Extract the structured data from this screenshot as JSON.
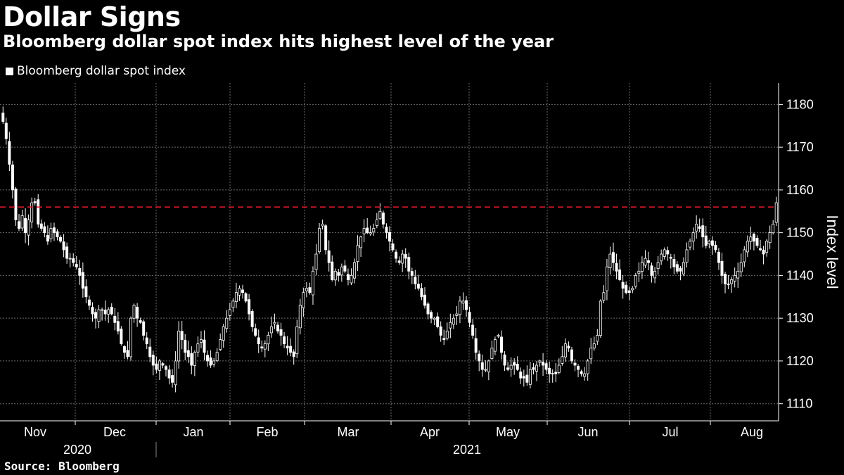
{
  "title": "Dollar Signs",
  "subtitle": "Bloomberg dollar spot index hits highest level of the year",
  "source": "Source: Bloomberg",
  "chart_data": {
    "type": "candlestick",
    "legend": [
      "Bloomberg dollar spot index"
    ],
    "legend_placement": "top-left",
    "ylabel": "Index level",
    "ylim": [
      1106,
      1185
    ],
    "yticks": [
      1110,
      1120,
      1130,
      1140,
      1150,
      1160,
      1170,
      1180
    ],
    "grid": true,
    "x_months": [
      "Nov",
      "Dec",
      "Jan",
      "Feb",
      "Mar",
      "Apr",
      "May",
      "Jun",
      "Jul",
      "Aug"
    ],
    "x_years": [
      "2020",
      "2021"
    ],
    "reference_line": {
      "value": 1156,
      "color": "#e0182d",
      "style": "dashed"
    },
    "series": [
      {
        "name": "Bloomberg dollar spot index",
        "close_levels": [
          1176,
          1172,
          1166,
          1160,
          1153,
          1151,
          1154,
          1150,
          1153,
          1157,
          1157,
          1152,
          1151,
          1150,
          1148,
          1151,
          1150,
          1149,
          1148,
          1146,
          1144,
          1144,
          1143,
          1142,
          1140,
          1137,
          1135,
          1133,
          1131,
          1130,
          1132,
          1132,
          1131,
          1132,
          1131,
          1129,
          1127,
          1124,
          1122,
          1121,
          1130,
          1133,
          1130,
          1129,
          1126,
          1124,
          1121,
          1119,
          1118,
          1120,
          1119,
          1118,
          1116,
          1115,
          1120,
          1127,
          1125,
          1122,
          1121,
          1119,
          1122,
          1124,
          1125,
          1122,
          1120,
          1119,
          1120,
          1122,
          1125,
          1128,
          1130,
          1132,
          1134,
          1136,
          1137,
          1136,
          1134,
          1131,
          1128,
          1126,
          1124,
          1123,
          1124,
          1126,
          1128,
          1129,
          1127,
          1126,
          1124,
          1123,
          1122,
          1121,
          1128,
          1133,
          1136,
          1137,
          1136,
          1141,
          1145,
          1151,
          1152,
          1146,
          1143,
          1139,
          1141,
          1140,
          1142,
          1141,
          1139,
          1140,
          1143,
          1147,
          1149,
          1151,
          1150,
          1150,
          1151,
          1153,
          1155,
          1152,
          1150,
          1148,
          1146,
          1144,
          1143,
          1145,
          1144,
          1141,
          1140,
          1138,
          1137,
          1135,
          1133,
          1131,
          1130,
          1130,
          1128,
          1126,
          1125,
          1127,
          1129,
          1130,
          1131,
          1134,
          1134,
          1132,
          1129,
          1126,
          1122,
          1120,
          1118,
          1118,
          1120,
          1123,
          1125,
          1126,
          1122,
          1119,
          1118,
          1119,
          1119,
          1118,
          1116,
          1116,
          1115,
          1118,
          1118,
          1119,
          1120,
          1119,
          1118,
          1117,
          1117,
          1117,
          1119,
          1121,
          1124,
          1123,
          1120,
          1119,
          1118,
          1117,
          1117,
          1120,
          1123,
          1124,
          1126,
          1134,
          1136,
          1142,
          1145,
          1143,
          1141,
          1139,
          1137,
          1136,
          1136,
          1137,
          1140,
          1141,
          1143,
          1144,
          1143,
          1140,
          1141,
          1143,
          1145,
          1146,
          1145,
          1144,
          1142,
          1141,
          1141,
          1143,
          1146,
          1148,
          1150,
          1152,
          1151,
          1149,
          1147,
          1148,
          1147,
          1146,
          1143,
          1140,
          1138,
          1138,
          1139,
          1140,
          1141,
          1143,
          1146,
          1148,
          1149,
          1148,
          1147,
          1146,
          1145,
          1148,
          1150,
          1152,
          1157
        ]
      }
    ]
  }
}
